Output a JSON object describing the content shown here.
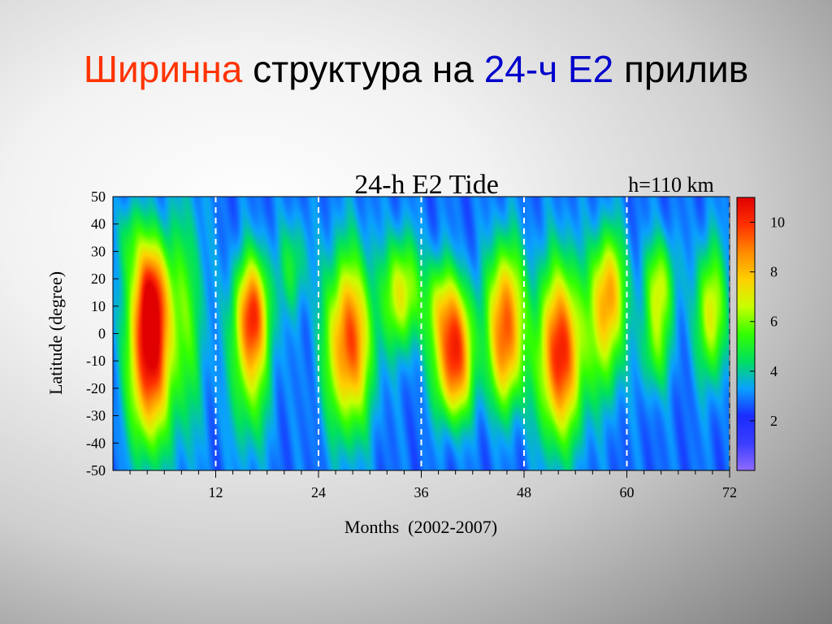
{
  "slide": {
    "title_parts": [
      {
        "text": "Ширинна",
        "color": "#ff3300"
      },
      {
        "text": " структура на ",
        "color": "#000000"
      },
      {
        "text": "24-ч E2",
        "color": "#0000cc"
      },
      {
        "text": " прилив",
        "color": "#000000"
      }
    ]
  },
  "chart_data": {
    "type": "heatmap",
    "title": "24-h E2 Tide",
    "subtitle": "h=110 km",
    "xlabel": "Months  (2002-2007)",
    "ylabel": "Latitude (degree)",
    "xlim": [
      0,
      72
    ],
    "ylim": [
      -50,
      50
    ],
    "x_ticks": [
      12,
      24,
      36,
      48,
      60,
      72
    ],
    "y_ticks": [
      50,
      40,
      30,
      20,
      10,
      0,
      -10,
      -20,
      -30,
      -40,
      -50
    ],
    "y_tick_labels": [
      "50",
      "40",
      "30",
      "20",
      "10",
      "0",
      "-10",
      "-20",
      "-30",
      "-40",
      "-50"
    ],
    "x_tick_labels": [
      "12",
      "24",
      "36",
      "48",
      "60",
      "72"
    ],
    "dashed_vlines": [
      12,
      24,
      36,
      48,
      60,
      72
    ],
    "colorbar": {
      "range": [
        0,
        11
      ],
      "ticks": [
        2,
        4,
        6,
        8,
        10
      ],
      "tick_labels": [
        "2",
        "4",
        "6",
        "8",
        "10"
      ],
      "colors": [
        "#8f6bff",
        "#3a3dff",
        "#1a2cff",
        "#0aa0ff",
        "#00e060",
        "#33ff00",
        "#c8ff00",
        "#ffd000",
        "#ff8a00",
        "#ff3000",
        "#e00000"
      ]
    },
    "background_value": 2.8,
    "peaks": [
      {
        "month": 4.2,
        "lat": -10,
        "value": 10.2,
        "lat_width": 22,
        "month_width": 1.7
      },
      {
        "month": 4.4,
        "lat": 15,
        "value": 7.5,
        "lat_width": 15,
        "month_width": 1.5
      },
      {
        "month": 8.5,
        "lat": 5,
        "value": 5.3,
        "lat_width": 30,
        "month_width": 1.6
      },
      {
        "month": 16.2,
        "lat": 9,
        "value": 8.0,
        "lat_width": 14,
        "month_width": 1.4
      },
      {
        "month": 16.0,
        "lat": -12,
        "value": 6.2,
        "lat_width": 20,
        "month_width": 1.6
      },
      {
        "month": 27.5,
        "lat": -3,
        "value": 9.6,
        "lat_width": 22,
        "month_width": 1.9
      },
      {
        "month": 33.7,
        "lat": 15,
        "value": 7.2,
        "lat_width": 14,
        "month_width": 1.5
      },
      {
        "month": 38.0,
        "lat": 12,
        "value": 5.2,
        "lat_width": 12,
        "month_width": 1.2
      },
      {
        "month": 39.8,
        "lat": 0,
        "value": 8.3,
        "lat_width": 14,
        "month_width": 1.6
      },
      {
        "month": 39.8,
        "lat": -18,
        "value": 6.5,
        "lat_width": 12,
        "month_width": 1.6
      },
      {
        "month": 45.8,
        "lat": 10,
        "value": 8.3,
        "lat_width": 17,
        "month_width": 1.5
      },
      {
        "month": 45.8,
        "lat": -12,
        "value": 6.0,
        "lat_width": 14,
        "month_width": 1.4
      },
      {
        "month": 52.2,
        "lat": -7,
        "value": 10.2,
        "lat_width": 22,
        "month_width": 1.9
      },
      {
        "month": 57.8,
        "lat": 17,
        "value": 7.6,
        "lat_width": 15,
        "month_width": 1.4
      },
      {
        "month": 57.5,
        "lat": -5,
        "value": 5.2,
        "lat_width": 16,
        "month_width": 1.4
      },
      {
        "month": 63.8,
        "lat": 18,
        "value": 6.3,
        "lat_width": 12,
        "month_width": 1.3
      },
      {
        "month": 63.3,
        "lat": -5,
        "value": 5.2,
        "lat_width": 12,
        "month_width": 1.3
      },
      {
        "month": 69.8,
        "lat": 8,
        "value": 7.2,
        "lat_width": 17,
        "month_width": 1.2
      },
      {
        "month": 2.0,
        "lat": 35,
        "value": 4.5,
        "lat_width": 10,
        "month_width": 1.0
      },
      {
        "month": 21.0,
        "lat": 25,
        "value": 4.8,
        "lat_width": 12,
        "month_width": 1.2
      }
    ]
  }
}
